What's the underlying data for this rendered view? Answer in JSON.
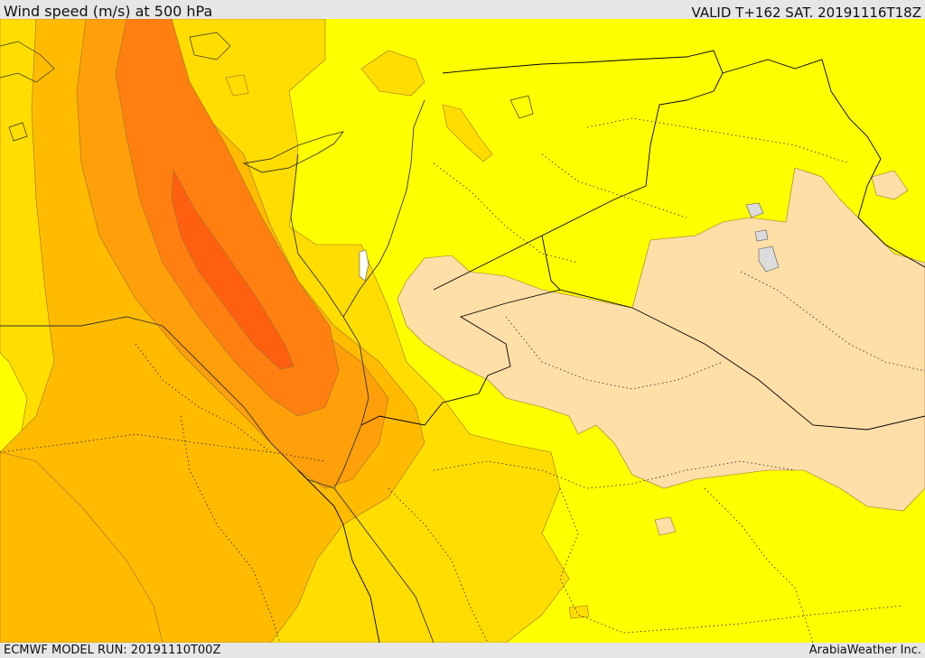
{
  "header": {
    "title": "Wind speed (m/s) at 500 hPa",
    "valid_time": "VALID T+162 SAT. 20191116T18Z"
  },
  "footer": {
    "model_run": "ECMWF MODEL RUN: 20191110T00Z",
    "credit": "ArabiaWeather Inc."
  },
  "map": {
    "field": "wind speed at 500 hPa",
    "colors": {
      "background": "#ffff00",
      "band_1": "#ffdd00",
      "band_2": "#ffbb00",
      "band_3": "#ff9f0a",
      "band_4": "#ff8010",
      "band_5": "#ff6010",
      "low_wind": "#ffdfa8",
      "water": "#ffffff",
      "lakes": "#dcdcdc",
      "border": "#000000"
    }
  }
}
